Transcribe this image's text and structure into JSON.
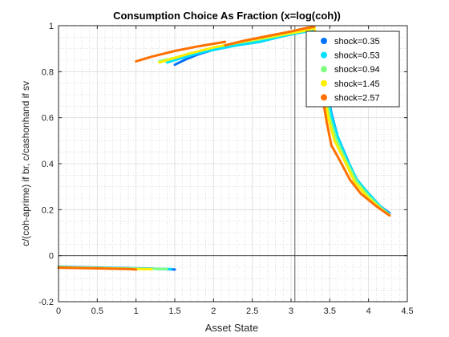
{
  "chart_data": {
    "type": "line",
    "title": "Consumption Choice As Fraction (x=log(coh))",
    "xlabel": "Asset State",
    "ylabel": "c/(coh-aprime) if br, c/cashonhand if sv",
    "xlim": [
      0,
      4.5
    ],
    "ylim": [
      -0.2,
      1.0
    ],
    "xticks": [
      0,
      0.5,
      1,
      1.5,
      2,
      2.5,
      3,
      3.5,
      4,
      4.5
    ],
    "xtick_labels": [
      "0",
      "0.5",
      "1",
      "1.5",
      "2",
      "2.5",
      "3",
      "3.5",
      "4",
      "4.5"
    ],
    "yticks": [
      -0.2,
      0,
      0.2,
      0.4,
      0.6,
      0.8,
      1.0
    ],
    "ytick_labels": [
      "-0.2",
      "0",
      "0.2",
      "0.4",
      "0.6",
      "0.8",
      "1"
    ],
    "grid": true,
    "minor_grid": true,
    "reference_lines": {
      "y": 0,
      "x": 3.05
    },
    "legend_position": "top-right",
    "series": [
      {
        "name": "shock=0.35",
        "color": "#0072ff",
        "segments": [
          [
            [
              0.0,
              -0.048
            ],
            [
              0.3,
              -0.05
            ],
            [
              0.6,
              -0.052
            ],
            [
              0.9,
              -0.054
            ],
            [
              1.2,
              -0.056
            ],
            [
              1.5,
              -0.06
            ]
          ],
          [
            [
              1.5,
              0.83
            ],
            [
              1.65,
              0.855
            ],
            [
              1.8,
              0.875
            ],
            [
              2.0,
              0.895
            ],
            [
              2.3,
              0.915
            ],
            [
              2.6,
              0.93
            ],
            [
              2.9,
              0.955
            ],
            [
              3.2,
              0.975
            ],
            [
              3.3,
              0.985
            ]
          ],
          [
            [
              3.3,
              0.975
            ],
            [
              3.38,
              0.88
            ],
            [
              3.45,
              0.75
            ],
            [
              3.52,
              0.62
            ],
            [
              3.6,
              0.52
            ],
            [
              3.75,
              0.4
            ],
            [
              3.85,
              0.33
            ],
            [
              4.0,
              0.27
            ],
            [
              4.15,
              0.215
            ],
            [
              4.27,
              0.185
            ]
          ]
        ]
      },
      {
        "name": "shock=0.53",
        "color": "#00e0ff",
        "segments": [
          [
            [
              0.0,
              -0.049
            ],
            [
              0.3,
              -0.051
            ],
            [
              0.6,
              -0.053
            ],
            [
              0.9,
              -0.055
            ],
            [
              1.2,
              -0.057
            ],
            [
              1.45,
              -0.058
            ]
          ],
          [
            [
              1.4,
              0.84
            ],
            [
              1.6,
              0.86
            ],
            [
              1.8,
              0.88
            ],
            [
              2.0,
              0.895
            ],
            [
              2.3,
              0.915
            ],
            [
              2.6,
              0.93
            ],
            [
              2.9,
              0.955
            ],
            [
              3.2,
              0.975
            ],
            [
              3.3,
              0.985
            ]
          ],
          [
            [
              3.3,
              0.97
            ],
            [
              3.38,
              0.87
            ],
            [
              3.45,
              0.74
            ],
            [
              3.52,
              0.61
            ],
            [
              3.6,
              0.52
            ],
            [
              3.72,
              0.42
            ],
            [
              3.85,
              0.33
            ],
            [
              4.0,
              0.27
            ],
            [
              4.15,
              0.215
            ],
            [
              4.27,
              0.18
            ]
          ]
        ]
      },
      {
        "name": "shock=0.94",
        "color": "#80ff80",
        "segments": [
          [
            [
              0.0,
              -0.05
            ],
            [
              0.3,
              -0.052
            ],
            [
              0.6,
              -0.054
            ],
            [
              0.9,
              -0.056
            ],
            [
              1.2,
              -0.057
            ],
            [
              1.4,
              -0.058
            ]
          ],
          [
            [
              1.3,
              0.845
            ],
            [
              1.5,
              0.86
            ],
            [
              1.7,
              0.88
            ],
            [
              2.0,
              0.905
            ],
            [
              2.3,
              0.925
            ],
            [
              2.6,
              0.94
            ],
            [
              2.9,
              0.96
            ],
            [
              3.2,
              0.978
            ],
            [
              3.3,
              0.99
            ]
          ],
          [
            [
              3.3,
              0.985
            ],
            [
              3.37,
              0.86
            ],
            [
              3.44,
              0.72
            ],
            [
              3.5,
              0.6
            ],
            [
              3.58,
              0.51
            ],
            [
              3.7,
              0.42
            ],
            [
              3.85,
              0.32
            ],
            [
              4.0,
              0.26
            ],
            [
              4.15,
              0.21
            ],
            [
              4.27,
              0.178
            ]
          ]
        ]
      },
      {
        "name": "shock=1.45",
        "color": "#ffee00",
        "segments": [
          [
            [
              0.0,
              -0.051
            ],
            [
              0.3,
              -0.053
            ],
            [
              0.6,
              -0.055
            ],
            [
              0.9,
              -0.057
            ],
            [
              1.2,
              -0.059
            ]
          ],
          [
            [
              1.3,
              0.84
            ],
            [
              1.5,
              0.86
            ],
            [
              1.7,
              0.88
            ],
            [
              2.0,
              0.905
            ],
            [
              2.3,
              0.925
            ],
            [
              2.6,
              0.945
            ],
            [
              2.9,
              0.962
            ],
            [
              3.2,
              0.98
            ],
            [
              3.3,
              0.99
            ]
          ],
          [
            [
              3.3,
              0.99
            ],
            [
              3.36,
              0.86
            ],
            [
              3.42,
              0.72
            ],
            [
              3.48,
              0.6
            ],
            [
              3.56,
              0.5
            ],
            [
              3.68,
              0.42
            ],
            [
              3.82,
              0.32
            ],
            [
              4.0,
              0.25
            ],
            [
              4.15,
              0.205
            ],
            [
              4.27,
              0.175
            ]
          ]
        ]
      },
      {
        "name": "shock=2.57",
        "color": "#ff7000",
        "segments": [
          [
            [
              0.0,
              -0.052
            ],
            [
              0.3,
              -0.054
            ],
            [
              0.6,
              -0.056
            ],
            [
              0.9,
              -0.058
            ],
            [
              1.0,
              -0.06
            ]
          ],
          [
            [
              1.0,
              0.845
            ],
            [
              1.2,
              0.865
            ],
            [
              1.5,
              0.89
            ],
            [
              1.8,
              0.91
            ],
            [
              2.15,
              0.93
            ]
          ],
          [
            [
              2.15,
              0.915
            ],
            [
              2.4,
              0.935
            ],
            [
              2.7,
              0.955
            ],
            [
              3.0,
              0.975
            ],
            [
              3.2,
              0.99
            ],
            [
              3.3,
              0.995
            ]
          ],
          [
            [
              3.3,
              0.975
            ],
            [
              3.35,
              0.84
            ],
            [
              3.4,
              0.7
            ],
            [
              3.46,
              0.58
            ],
            [
              3.52,
              0.48
            ],
            [
              3.62,
              0.42
            ],
            [
              3.76,
              0.33
            ],
            [
              3.9,
              0.27
            ],
            [
              4.1,
              0.215
            ],
            [
              4.27,
              0.175
            ]
          ]
        ]
      }
    ]
  }
}
